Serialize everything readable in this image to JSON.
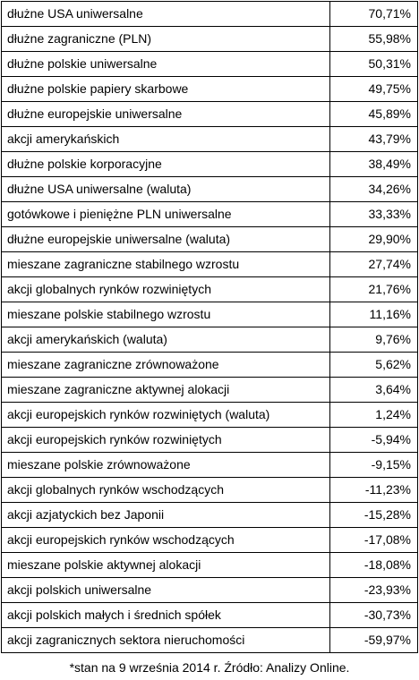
{
  "table": {
    "rows": [
      {
        "name": "dłużne USA uniwersalne",
        "value": "70,71%"
      },
      {
        "name": "dłużne zagraniczne (PLN)",
        "value": "55,98%"
      },
      {
        "name": "dłużne polskie uniwersalne",
        "value": "50,31%"
      },
      {
        "name": "dłużne polskie papiery skarbowe",
        "value": "49,75%"
      },
      {
        "name": "dłużne europejskie uniwersalne",
        "value": "45,89%"
      },
      {
        "name": "akcji amerykańskich",
        "value": "43,79%"
      },
      {
        "name": "dłużne polskie korporacyjne",
        "value": "38,49%"
      },
      {
        "name": "dłużne USA uniwersalne (waluta)",
        "value": "34,26%"
      },
      {
        "name": "gotówkowe i pieniężne PLN uniwersalne",
        "value": "33,33%"
      },
      {
        "name": "dłużne europejskie uniwersalne (waluta)",
        "value": "29,90%"
      },
      {
        "name": "mieszane zagraniczne stabilnego wzrostu",
        "value": "27,74%"
      },
      {
        "name": "akcji globalnych rynków rozwiniętych",
        "value": "21,76%"
      },
      {
        "name": "mieszane polskie stabilnego wzrostu",
        "value": "11,16%"
      },
      {
        "name": "akcji amerykańskich (waluta)",
        "value": "9,76%"
      },
      {
        "name": "mieszane zagraniczne zrównoważone",
        "value": "5,62%"
      },
      {
        "name": "mieszane zagraniczne aktywnej alokacji",
        "value": "3,64%"
      },
      {
        "name": "akcji europejskich rynków rozwiniętych (waluta)",
        "value": "1,24%"
      },
      {
        "name": "akcji europejskich rynków rozwiniętych",
        "value": "-5,94%"
      },
      {
        "name": "mieszane polskie zrównoważone",
        "value": "-9,15%"
      },
      {
        "name": "akcji globalnych rynków wschodzących",
        "value": "-11,23%"
      },
      {
        "name": "akcji azjatyckich bez Japonii",
        "value": "-15,28%"
      },
      {
        "name": "akcji europejskich rynków wschodzących",
        "value": "-17,08%"
      },
      {
        "name": "mieszane polskie aktywnej alokacji",
        "value": "-18,08%"
      },
      {
        "name": "akcji polskich uniwersalne",
        "value": "-23,93%"
      },
      {
        "name": "akcji polskich małych i średnich spółek",
        "value": "-30,73%"
      },
      {
        "name": "akcji zagranicznych sektora nieruchomości",
        "value": "-59,97%"
      }
    ]
  },
  "footnote": "*stan na 9 września 2014 r. Źródło: Analizy Online."
}
